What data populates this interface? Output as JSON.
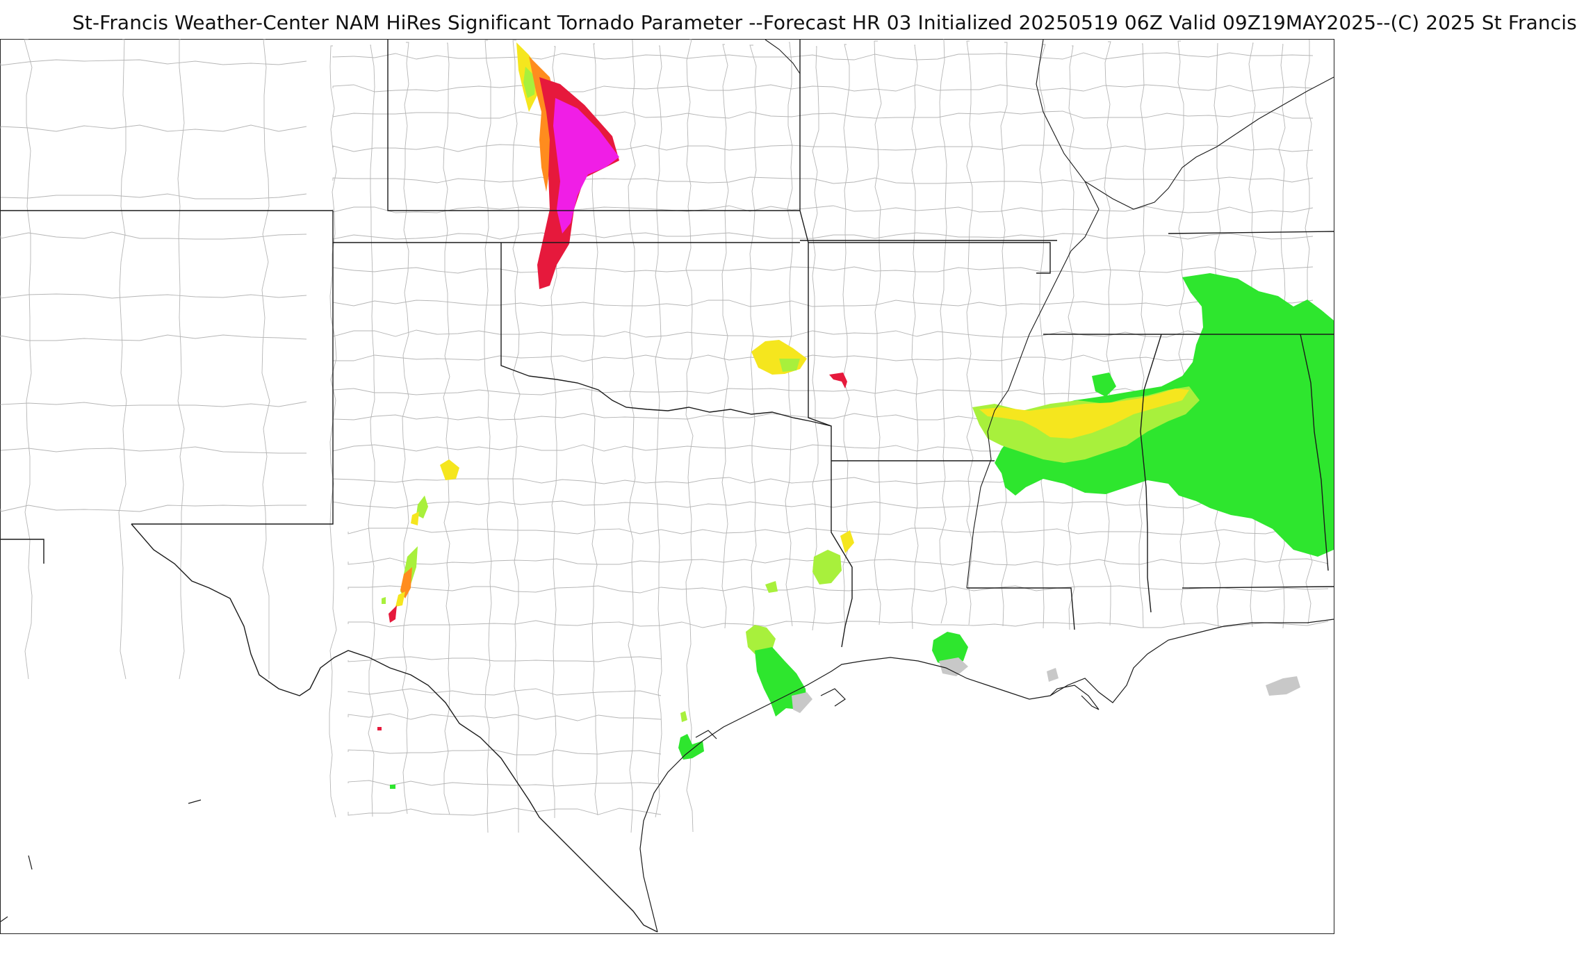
{
  "title": "St-Francis Weather-Center NAM HiRes Significant Tornado Parameter --Forecast HR 03 Initialized 20250519 06Z Valid 09Z19MAY2025--(C) 2025 St Francis",
  "colors": {
    "stp_gray": "#c8c8c8",
    "stp_green": "#2ee62e",
    "stp_lightgreen": "#a8f03c",
    "stp_yellow": "#f5e61e",
    "stp_orange": "#ff8c1e",
    "stp_red": "#e6193c",
    "stp_magenta": "#f01ee6",
    "state_border": "#1a1a1a",
    "county_border": "#b5b5b5"
  }
}
